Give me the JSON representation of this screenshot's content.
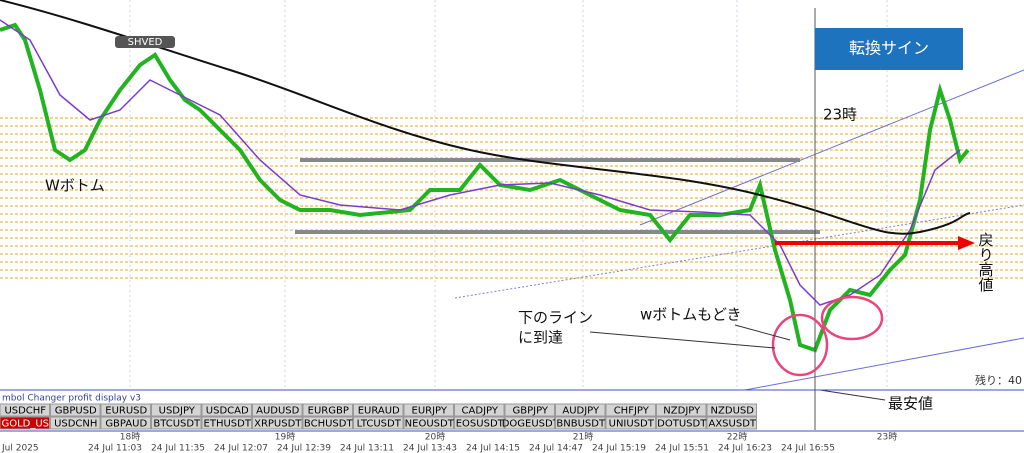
{
  "chart": {
    "badge": "SHVED",
    "signal_box": "転換サイン",
    "hour_note": "23時",
    "annotations": {
      "w_bottom": "Wボトム",
      "pullback_high": "戻り高値",
      "reached_line_1": "下のライン",
      "reached_line_2": "に到達",
      "w_bottom_like": "wボトムもどき",
      "lowest": "最安値"
    },
    "remaining": "残り：40"
  },
  "panel": {
    "title": "mbol Changer profit display v3",
    "row1": [
      "USDCHF",
      "GBPUSD",
      "EURUSD",
      "USDJPY",
      "USDCAD",
      "AUDUSD",
      "EURGBP",
      "EURAUD",
      "EURJPY",
      "CADJPY",
      "GBPJPY",
      "AUDJPY",
      "CHFJPY",
      "NZDJPY",
      "NZDUSD"
    ],
    "row2": [
      "GOLD_US",
      "USDCNH",
      "GBPAUD",
      "BTCUSDT",
      "ETHUSDT",
      "XRPUSDT",
      "BCHUSDT",
      "LTCUSDT",
      "NEOUSDT",
      "EOSUSDT",
      "DOGEUSDT",
      "BNBUSDT",
      "UNIUSDT",
      "DOTUSDT",
      "AXSUSDT"
    ]
  },
  "time_axis": {
    "hours": [
      "18時",
      "19時",
      "20時",
      "21時",
      "22時",
      "23時"
    ],
    "dates": [
      "Jul 2025",
      "24 Jul 11:03",
      "24 Jul 11:35",
      "24 Jul 12:07",
      "24 Jul 12:39",
      "24 Jul 13:11",
      "24 Jul 13:43",
      "24 Jul 14:15",
      "24 Jul 14:47",
      "24 Jul 15:19",
      "24 Jul 15:51",
      "24 Jul 16:23",
      "24 Jul 16:55"
    ]
  }
}
